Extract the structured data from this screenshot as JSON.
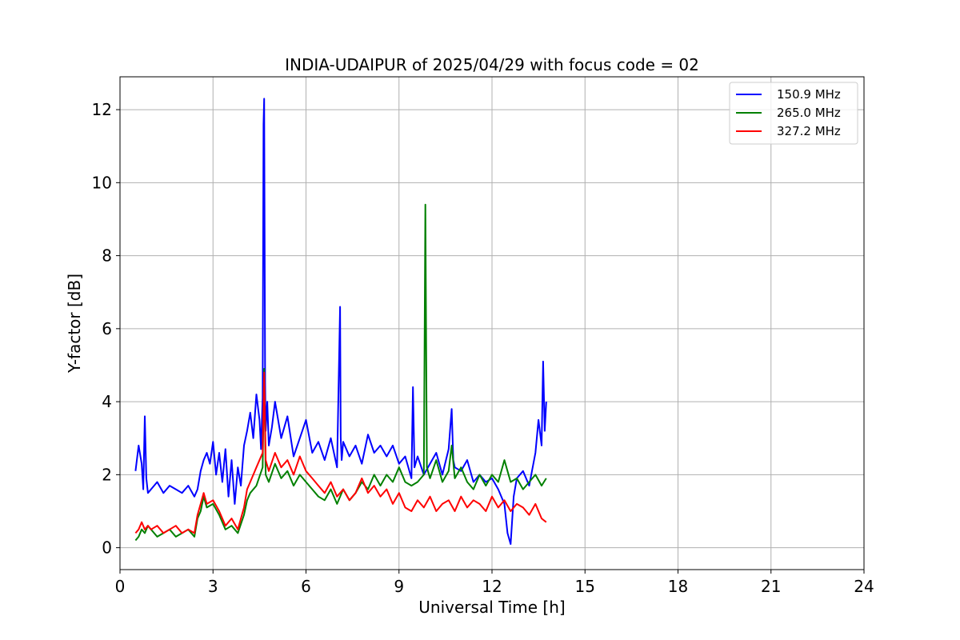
{
  "chart_data": {
    "type": "line",
    "title": "INDIA-UDAIPUR of 2025/04/29 with focus code = 02",
    "xlabel": "Universal Time [h]",
    "ylabel": "Y-factor [dB]",
    "xlim": [
      0,
      24
    ],
    "ylim": [
      -0.6,
      12.9
    ],
    "xticks": [
      0,
      3,
      6,
      9,
      12,
      15,
      18,
      21,
      24
    ],
    "yticks": [
      0,
      2,
      4,
      6,
      8,
      10,
      12
    ],
    "grid": true,
    "legend_position": "top-right",
    "series": [
      {
        "name": "150.9 MHz",
        "color": "#0000ff",
        "x": [
          0.5,
          0.6,
          0.7,
          0.75,
          0.8,
          0.85,
          0.9,
          1.0,
          1.2,
          1.4,
          1.6,
          1.8,
          2.0,
          2.2,
          2.4,
          2.5,
          2.6,
          2.7,
          2.8,
          2.9,
          3.0,
          3.1,
          3.2,
          3.3,
          3.4,
          3.5,
          3.6,
          3.7,
          3.8,
          3.9,
          4.0,
          4.1,
          4.2,
          4.3,
          4.4,
          4.5,
          4.55,
          4.6,
          4.63,
          4.65,
          4.68,
          4.7,
          4.75,
          4.8,
          4.9,
          5.0,
          5.2,
          5.4,
          5.6,
          5.8,
          6.0,
          6.2,
          6.4,
          6.6,
          6.8,
          7.0,
          7.1,
          7.12,
          7.15,
          7.2,
          7.4,
          7.6,
          7.8,
          8.0,
          8.2,
          8.4,
          8.6,
          8.8,
          9.0,
          9.2,
          9.4,
          9.45,
          9.5,
          9.6,
          9.8,
          10.0,
          10.2,
          10.4,
          10.6,
          10.7,
          10.75,
          10.8,
          11.0,
          11.2,
          11.4,
          11.6,
          11.8,
          12.0,
          12.2,
          12.4,
          12.5,
          12.6,
          12.7,
          12.8,
          13.0,
          13.2,
          13.4,
          13.5,
          13.6,
          13.65,
          13.7,
          13.75
        ],
        "y": [
          2.1,
          2.8,
          2.3,
          1.6,
          3.6,
          1.9,
          1.5,
          1.6,
          1.8,
          1.5,
          1.7,
          1.6,
          1.5,
          1.7,
          1.4,
          1.6,
          2.1,
          2.4,
          2.6,
          2.3,
          2.9,
          2.0,
          2.6,
          1.8,
          2.7,
          1.4,
          2.4,
          1.2,
          2.2,
          1.7,
          2.8,
          3.2,
          3.7,
          3.0,
          4.2,
          3.5,
          2.7,
          4.1,
          11.6,
          12.3,
          4.5,
          3.2,
          4.0,
          2.8,
          3.3,
          4.0,
          3.0,
          3.6,
          2.5,
          3.0,
          3.5,
          2.6,
          2.9,
          2.4,
          3.0,
          2.2,
          6.6,
          3.0,
          2.4,
          2.9,
          2.5,
          2.8,
          2.3,
          3.1,
          2.6,
          2.8,
          2.5,
          2.8,
          2.3,
          2.5,
          1.9,
          4.4,
          2.2,
          2.5,
          2.0,
          2.3,
          2.6,
          2.0,
          2.7,
          3.8,
          2.4,
          2.2,
          2.1,
          2.4,
          1.8,
          2.0,
          1.8,
          1.9,
          1.6,
          1.2,
          0.4,
          0.1,
          1.4,
          1.9,
          2.1,
          1.7,
          2.6,
          3.5,
          2.8,
          5.1,
          3.2,
          4.0
        ]
      },
      {
        "name": "265.0 MHz",
        "color": "#008000",
        "x": [
          0.5,
          0.6,
          0.7,
          0.8,
          0.9,
          1.0,
          1.2,
          1.4,
          1.6,
          1.8,
          2.0,
          2.2,
          2.4,
          2.5,
          2.6,
          2.7,
          2.8,
          3.0,
          3.2,
          3.4,
          3.6,
          3.8,
          4.0,
          4.1,
          4.2,
          4.4,
          4.6,
          4.65,
          4.7,
          4.8,
          5.0,
          5.2,
          5.4,
          5.6,
          5.8,
          6.0,
          6.2,
          6.4,
          6.6,
          6.8,
          7.0,
          7.2,
          7.4,
          7.6,
          7.8,
          8.0,
          8.2,
          8.4,
          8.6,
          8.8,
          9.0,
          9.2,
          9.4,
          9.6,
          9.8,
          9.85,
          9.9,
          10.0,
          10.2,
          10.4,
          10.6,
          10.7,
          10.8,
          11.0,
          11.2,
          11.4,
          11.6,
          11.8,
          12.0,
          12.2,
          12.4,
          12.6,
          12.8,
          13.0,
          13.2,
          13.4,
          13.6,
          13.75
        ],
        "y": [
          0.2,
          0.3,
          0.5,
          0.4,
          0.6,
          0.5,
          0.3,
          0.4,
          0.5,
          0.3,
          0.4,
          0.5,
          0.3,
          0.8,
          1.0,
          1.4,
          1.1,
          1.2,
          0.9,
          0.5,
          0.6,
          0.4,
          0.9,
          1.3,
          1.5,
          1.7,
          2.2,
          4.9,
          2.0,
          1.8,
          2.3,
          1.9,
          2.1,
          1.7,
          2.0,
          1.8,
          1.6,
          1.4,
          1.3,
          1.6,
          1.2,
          1.6,
          1.3,
          1.5,
          1.8,
          1.6,
          2.0,
          1.7,
          2.0,
          1.8,
          2.2,
          1.8,
          1.7,
          1.8,
          2.0,
          9.4,
          2.2,
          1.9,
          2.4,
          1.8,
          2.1,
          2.8,
          1.9,
          2.2,
          1.8,
          1.6,
          2.0,
          1.7,
          2.0,
          1.8,
          2.4,
          1.8,
          1.9,
          1.6,
          1.8,
          2.0,
          1.7,
          1.9
        ]
      },
      {
        "name": "327.2 MHz",
        "color": "#ff0000",
        "x": [
          0.5,
          0.6,
          0.7,
          0.8,
          0.9,
          1.0,
          1.2,
          1.4,
          1.6,
          1.8,
          2.0,
          2.2,
          2.4,
          2.5,
          2.6,
          2.7,
          2.8,
          3.0,
          3.2,
          3.4,
          3.6,
          3.8,
          4.0,
          4.1,
          4.2,
          4.4,
          4.6,
          4.65,
          4.7,
          4.8,
          5.0,
          5.2,
          5.4,
          5.6,
          5.8,
          6.0,
          6.2,
          6.4,
          6.6,
          6.8,
          7.0,
          7.2,
          7.4,
          7.6,
          7.8,
          8.0,
          8.2,
          8.4,
          8.6,
          8.8,
          9.0,
          9.2,
          9.4,
          9.6,
          9.8,
          10.0,
          10.2,
          10.4,
          10.6,
          10.8,
          11.0,
          11.2,
          11.4,
          11.6,
          11.8,
          12.0,
          12.2,
          12.4,
          12.6,
          12.8,
          13.0,
          13.2,
          13.4,
          13.6,
          13.75
        ],
        "y": [
          0.4,
          0.5,
          0.7,
          0.5,
          0.6,
          0.5,
          0.6,
          0.4,
          0.5,
          0.6,
          0.4,
          0.5,
          0.4,
          0.9,
          1.2,
          1.5,
          1.2,
          1.3,
          1.0,
          0.6,
          0.8,
          0.5,
          1.1,
          1.6,
          1.8,
          2.2,
          2.6,
          4.8,
          2.4,
          2.1,
          2.6,
          2.2,
          2.4,
          2.0,
          2.5,
          2.1,
          1.9,
          1.7,
          1.5,
          1.8,
          1.4,
          1.6,
          1.3,
          1.5,
          1.9,
          1.5,
          1.7,
          1.4,
          1.6,
          1.2,
          1.5,
          1.1,
          1.0,
          1.3,
          1.1,
          1.4,
          1.0,
          1.2,
          1.3,
          1.0,
          1.4,
          1.1,
          1.3,
          1.2,
          1.0,
          1.4,
          1.1,
          1.3,
          1.0,
          1.2,
          1.1,
          0.9,
          1.2,
          0.8,
          0.7
        ]
      }
    ]
  }
}
